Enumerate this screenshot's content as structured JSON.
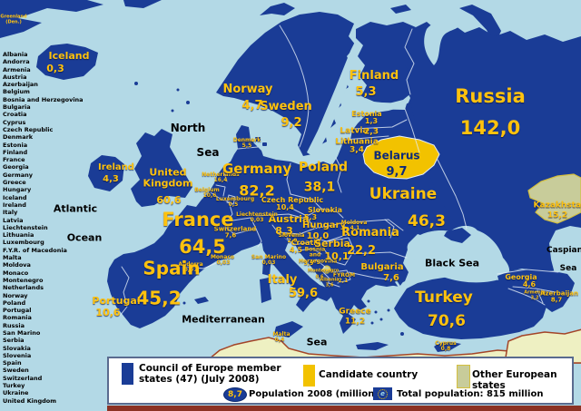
{
  "colors": {
    "member": "#1a3c96",
    "candidate": "#f2c200",
    "other": "#c8cc9a",
    "sea": "#b3d9e6",
    "outland": "#eef0c2",
    "label": "#ffc20e",
    "label_dark": "#0d2a7a",
    "sea_label": "#000000",
    "legend_border": "#5a6b8f",
    "bottom_bar": "#8c3224",
    "coast": "#a34428"
  },
  "map": {
    "country_labels": [
      {
        "id": "iceland",
        "name": "Iceland",
        "value": "0,3"
      },
      {
        "id": "norway",
        "name": "Norway",
        "value": "4,7"
      },
      {
        "id": "sweden",
        "name": "Sweden",
        "value": "9,2"
      },
      {
        "id": "finland",
        "name": "Finland",
        "value": "5,3"
      },
      {
        "id": "estonia",
        "name": "Estonia",
        "value": "1,3"
      },
      {
        "id": "latvia",
        "name": "Latvia",
        "value": "2,3"
      },
      {
        "id": "lithuania",
        "name": "Lithuania",
        "value": "3,4"
      },
      {
        "id": "belarus",
        "name": "Belarus",
        "value": "9,7"
      },
      {
        "id": "russia",
        "name": "Russia",
        "value": "142,0"
      },
      {
        "id": "kazakhstan",
        "name": "Kazakhstan",
        "value": "15,2"
      },
      {
        "id": "ireland",
        "name": "Ireland",
        "value": "4,3"
      },
      {
        "id": "uk",
        "name": "United Kingdom",
        "value": "60,6"
      },
      {
        "id": "denmark",
        "name": "Denmark",
        "value": "5,5"
      },
      {
        "id": "netherlands",
        "name": "Netherlands",
        "value": "16,4"
      },
      {
        "id": "belgium",
        "name": "Belgium",
        "value": "10,6"
      },
      {
        "id": "luxembourg",
        "name": "Luxembourg",
        "value": "0,5"
      },
      {
        "id": "germany",
        "name": "Germany",
        "value": "82,2"
      },
      {
        "id": "poland",
        "name": "Poland",
        "value": "38,1"
      },
      {
        "id": "czech",
        "name": "Czech Republic",
        "value": "10,4"
      },
      {
        "id": "slovakia",
        "name": "Slovakia",
        "value": "5,3"
      },
      {
        "id": "austria",
        "name": "Austria",
        "value": "8,3"
      },
      {
        "id": "switzerland",
        "name": "Switzerland",
        "value": "7,6"
      },
      {
        "id": "liechtenstein",
        "name": "Liechtenstein",
        "value": "0,03"
      },
      {
        "id": "hungary",
        "name": "Hungary",
        "value": "10,0"
      },
      {
        "id": "france",
        "name": "France",
        "value": "64,5"
      },
      {
        "id": "monaco",
        "name": "Monaco",
        "value": "0,03"
      },
      {
        "id": "andorra",
        "name": "Andorra",
        "value": "0,07"
      },
      {
        "id": "spain",
        "name": "Spain",
        "value": "45,2"
      },
      {
        "id": "portugal",
        "name": "Portugal",
        "value": "10,6"
      },
      {
        "id": "italy",
        "name": "Italy",
        "value": "59,6"
      },
      {
        "id": "sanmarino",
        "name": "San Marino",
        "value": "0,03"
      },
      {
        "id": "slovenia",
        "name": "Slovenia",
        "value": "2,0"
      },
      {
        "id": "croatia",
        "name": "Croatia",
        "value": "4,5"
      },
      {
        "id": "bosnia",
        "name": "Bosnia and Herzegovina",
        "value": "3,9"
      },
      {
        "id": "serbia",
        "name": "Serbia",
        "value": "10,1"
      },
      {
        "id": "montenegro",
        "name": "Montenegro",
        "value": "0,6"
      },
      {
        "id": "albania",
        "name": "Albania",
        "value": "3,6"
      },
      {
        "id": "fyrom",
        "name": "FYROM",
        "value": "2,1"
      },
      {
        "id": "bulgaria",
        "name": "Bulgaria",
        "value": "7,6"
      },
      {
        "id": "romania",
        "name": "Romania",
        "value": "22,2"
      },
      {
        "id": "moldova",
        "name": "Moldova",
        "value": "4,1"
      },
      {
        "id": "ukraine",
        "name": "Ukraine",
        "value": "46,3"
      },
      {
        "id": "greece",
        "name": "Greece",
        "value": "11,2"
      },
      {
        "id": "turkey",
        "name": "Turkey",
        "value": "70,6"
      },
      {
        "id": "cyprus",
        "name": "Cyprus",
        "value": "0,8"
      },
      {
        "id": "malta",
        "name": "Malta",
        "value": "0,4"
      },
      {
        "id": "georgia",
        "name": "Georgia",
        "value": "4,6"
      },
      {
        "id": "armenia",
        "name": "Armenia",
        "value": "3,2"
      },
      {
        "id": "azerbaijan",
        "name": "Azerbaijan",
        "value": "8,7"
      }
    ],
    "sea_labels": [
      {
        "id": "north",
        "text": "North"
      },
      {
        "id": "north_sea",
        "text": "Sea"
      },
      {
        "id": "atlantic",
        "text": "Atlantic"
      },
      {
        "id": "ocean",
        "text": "Ocean"
      },
      {
        "id": "mediterranean",
        "text": "Mediterranean"
      },
      {
        "id": "med_sea",
        "text": "Sea"
      },
      {
        "id": "black_sea",
        "text": "Black Sea"
      },
      {
        "id": "caspian",
        "text": "Caspian"
      },
      {
        "id": "caspian_sea",
        "text": "Sea"
      }
    ],
    "territory_labels": [
      {
        "id": "greenland",
        "text": "Greenland (Den.)"
      }
    ]
  },
  "country_list": [
    "Albania",
    "Andorra",
    "Armenia",
    "Austria",
    "Azerbaijan",
    "Belgium",
    "Bosnia and Herzegovina",
    "Bulgaria",
    "Croatia",
    "Cyprus",
    "Czech Republic",
    "Denmark",
    "Estonia",
    "Finland",
    "France",
    "Georgia",
    "Germany",
    "Greece",
    "Hungary",
    "Iceland",
    "Ireland",
    "Italy",
    "Latvia",
    "Liechtenstein",
    "Lithuania",
    "Luxembourg",
    "F.Y.R. of Macedonia",
    "Malta",
    "Moldova",
    "Monaco",
    "Montenegro",
    "Netherlands",
    "Norway",
    "Poland",
    "Portugal",
    "Romania",
    "Russia",
    "San Marino",
    "Serbia",
    "Slovakia",
    "Slovenia",
    "Spain",
    "Sweden",
    "Switzerland",
    "Turkey",
    "Ukraine",
    "United Kingdom"
  ],
  "legend": {
    "member_label": "Council of Europe member states (47) (July 2008)",
    "candidate_label": "Candidate country",
    "other_label": "Other European states",
    "population_badge": "8,7",
    "population_label": "Population 2008 (million)",
    "total_label": "Total population: 815 million"
  }
}
